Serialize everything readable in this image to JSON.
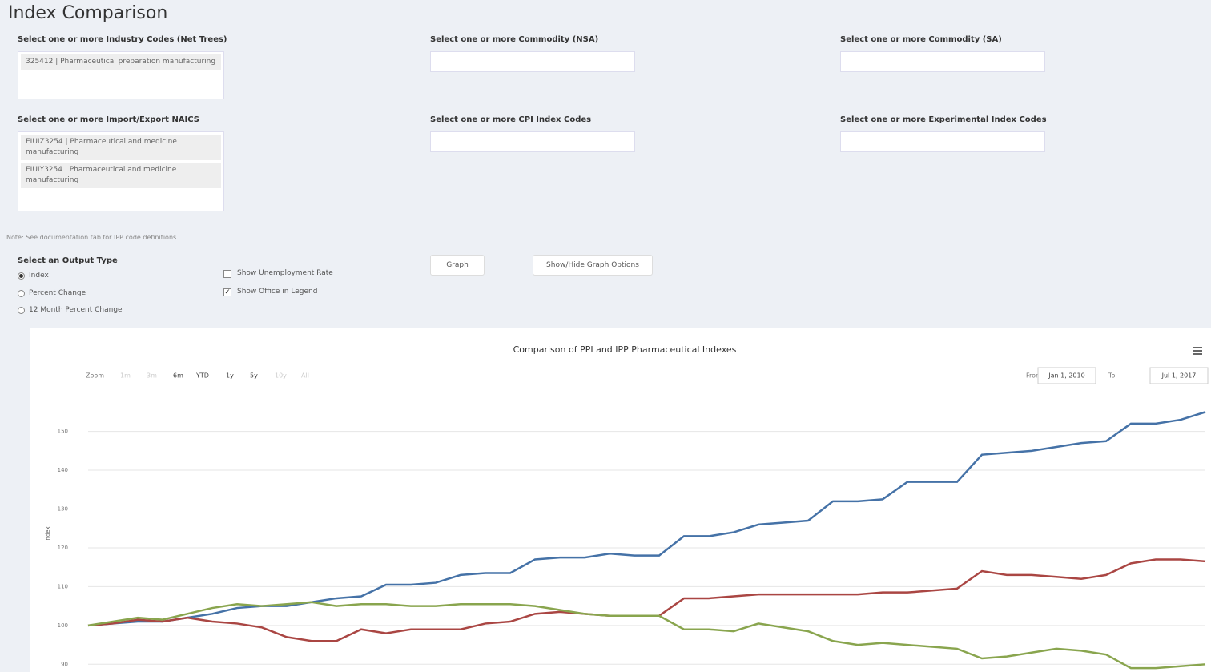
{
  "header": {
    "title": "Index Comparison"
  },
  "filters": [
    {
      "label": "Select one or more Industry Codes (Net Trees)",
      "selected": [
        "325412 | Pharmaceutical preparation manufacturing"
      ]
    },
    {
      "label": "Select one or more Commodity (NSA)",
      "selected": []
    },
    {
      "label": "Select one or more Commodity (SA)",
      "selected": []
    },
    {
      "label": "Select one or more Import/Export NAICS",
      "selected": [
        "EIUIZ3254 | Pharmaceutical and medicine manufacturing",
        "EIUIY3254 | Pharmaceutical and medicine manufacturing"
      ]
    },
    {
      "label": "Select one or more CPI Index Codes",
      "selected": []
    },
    {
      "label": "Select one or more Experimental Index Codes",
      "selected": []
    }
  ],
  "note": "Note: See documentation tab for IPP code definitions",
  "output_type": {
    "label": "Select an Output Type",
    "options": [
      "Index",
      "Percent Change",
      "12 Month Percent Change"
    ],
    "selected": 0
  },
  "checkboxes": [
    {
      "label": "Show Unemployment Rate",
      "checked": false
    },
    {
      "label": "Show Office in Legend",
      "checked": true
    }
  ],
  "buttons": [
    "Graph",
    "Show/Hide Graph Options"
  ],
  "chart_data": {
    "type": "line",
    "title": "Comparison of PPI and IPP Pharmaceutical Indexes",
    "y_label": "Index",
    "zoom_label": "Zoom",
    "zoom_buttons": [
      "1m",
      "3m",
      "6m",
      "YTD",
      "1y",
      "5y",
      "10y",
      "All"
    ],
    "from_label": "From",
    "from": "Jan 1, 2010",
    "to_label": "To",
    "to": "Jul 1, 2017",
    "ylim": [
      88,
      159
    ],
    "yticks": [
      90,
      100,
      110,
      120,
      130,
      140,
      150
    ],
    "grid": true,
    "series": [
      {
        "color": "#4572a7",
        "values": [
          100,
          100.5,
          101,
          101,
          102,
          103,
          104.5,
          105,
          105,
          106,
          107,
          107.5,
          110.5,
          110.5,
          111,
          113,
          113.5,
          113.5,
          117,
          117.5,
          117.5,
          118.5,
          118,
          118,
          123,
          123,
          124,
          126,
          126.5,
          127,
          132,
          132,
          132.5,
          137,
          137,
          137,
          144,
          144.5,
          145,
          146,
          147,
          147.5,
          152,
          152,
          153,
          155
        ]
      },
      {
        "color": "#aa4643",
        "values": [
          100,
          100.5,
          101.5,
          101,
          102,
          101,
          100.5,
          99.5,
          97,
          96,
          96,
          99,
          98,
          99,
          99,
          99,
          100.5,
          101,
          103,
          103.5,
          103,
          102.5,
          102.5,
          102.5,
          107,
          107,
          107.5,
          108,
          108,
          108,
          108,
          108,
          108.5,
          108.5,
          109,
          109.5,
          114,
          113,
          113,
          112.5,
          112,
          113,
          116,
          117,
          117,
          116.5
        ]
      },
      {
        "color": "#89a54e",
        "values": [
          100,
          101,
          102,
          101.5,
          103,
          104.5,
          105.5,
          105,
          105.5,
          106,
          105,
          105.5,
          105.5,
          105,
          105,
          105.5,
          105.5,
          105.5,
          105,
          104,
          103,
          102.5,
          102.5,
          102.5,
          99,
          99,
          98.5,
          100.5,
          99.5,
          98.5,
          96,
          95,
          95.5,
          95,
          94.5,
          94,
          91.5,
          92,
          93,
          94,
          93.5,
          92.5,
          89,
          89,
          89.5,
          90
        ]
      }
    ]
  }
}
